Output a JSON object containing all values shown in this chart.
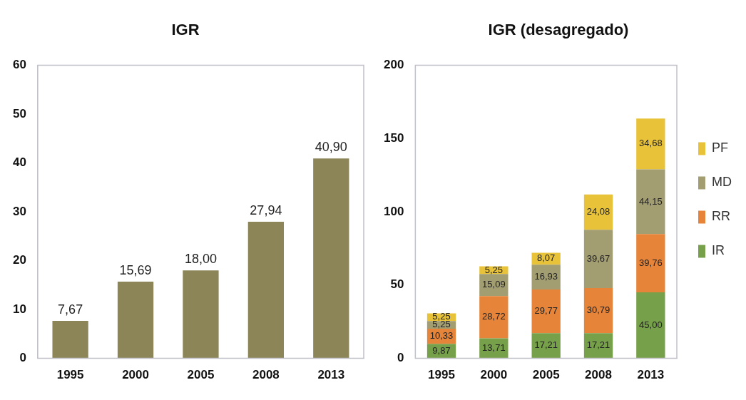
{
  "chart_data": [
    {
      "type": "bar",
      "title": "IGR",
      "categories": [
        "1995",
        "2000",
        "2005",
        "2008",
        "2013"
      ],
      "values": [
        7.67,
        15.69,
        18.0,
        27.94,
        40.9
      ],
      "value_labels": [
        "7,67",
        "15,69",
        "18,00",
        "27,94",
        "40,90"
      ],
      "color": "#8b8558",
      "ylim": [
        0,
        60
      ],
      "yticks": [
        0,
        10,
        20,
        30,
        40,
        50,
        60
      ],
      "grid": false,
      "legend": false
    },
    {
      "type": "bar",
      "title": "IGR (desagregado)",
      "stacked": true,
      "categories": [
        "1995",
        "2000",
        "2005",
        "2008",
        "2013"
      ],
      "series": [
        {
          "name": "IR",
          "color": "#77a04a",
          "values": [
            9.87,
            13.71,
            17.21,
            17.21,
            45.0
          ],
          "value_labels": [
            "9,87",
            "13,71",
            "17,21",
            "17,21",
            "45,00"
          ]
        },
        {
          "name": "RR",
          "color": "#e6843a",
          "values": [
            10.33,
            28.72,
            29.77,
            30.79,
            39.76
          ],
          "value_labels": [
            "10,33",
            "28,72",
            "29,77",
            "30,79",
            "39,76"
          ]
        },
        {
          "name": "MD",
          "color": "#a39e72",
          "values": [
            5.25,
            15.09,
            16.93,
            39.67,
            44.15
          ],
          "value_labels": [
            "5,25",
            "15,09",
            "16,93",
            "39,67",
            "44,15"
          ]
        },
        {
          "name": "PF",
          "color": "#e8c33a",
          "values": [
            5.25,
            5.25,
            8.07,
            24.08,
            34.68
          ],
          "value_labels": [
            "5,25",
            "5,25",
            "8,07",
            "24,08",
            "34,68"
          ]
        }
      ],
      "ylim": [
        0,
        200
      ],
      "yticks": [
        0,
        50,
        100,
        150,
        200
      ],
      "grid": false,
      "legend": "right"
    }
  ]
}
